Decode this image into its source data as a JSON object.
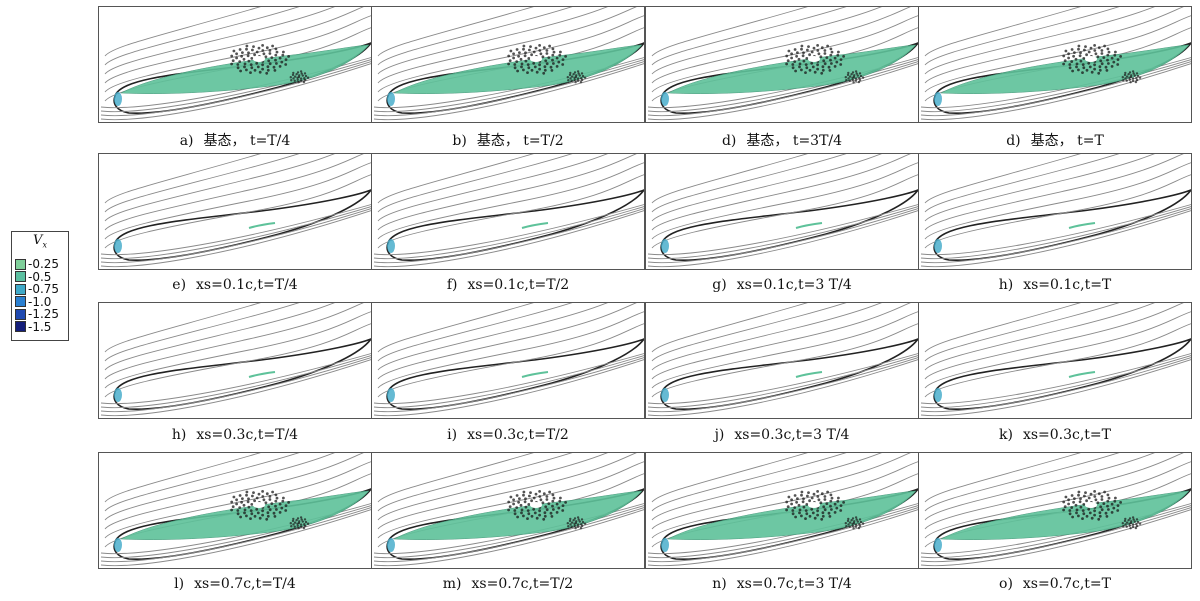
{
  "legend": {
    "title": "V",
    "title_sub": "x",
    "entries": [
      {
        "label": "-0.25",
        "color": "#7fcf9a"
      },
      {
        "label": "-0.5",
        "color": "#5bbfa0"
      },
      {
        "label": "-0.75",
        "color": "#3fa9c8"
      },
      {
        "label": "-1.0",
        "color": "#2a7fd0"
      },
      {
        "label": "-1.25",
        "color": "#1f49b0"
      },
      {
        "label": "-1.5",
        "color": "#141e7a"
      }
    ]
  },
  "colors": {
    "streamline": "#8a8a8a",
    "separation_green": "#5ec29a",
    "vortex_core": "#1a1a1a",
    "frame": "#555555"
  },
  "panels": [
    {
      "letter": "a)",
      "text": "基态， t=T/4",
      "state": "separated"
    },
    {
      "letter": "b)",
      "text": "基态， t=T/2",
      "state": "separated"
    },
    {
      "letter": "d)",
      "text": "基态， t=3T/4",
      "state": "separated"
    },
    {
      "letter": "d)",
      "text": "基态， t=T",
      "state": "separated"
    },
    {
      "letter": "e)",
      "text": "xs=0.1c,t=T/4",
      "state": "attached"
    },
    {
      "letter": "f)",
      "text": "xs=0.1c,t=T/2",
      "state": "attached"
    },
    {
      "letter": "g)",
      "text": "xs=0.1c,t=3 T/4",
      "state": "attached"
    },
    {
      "letter": "h)",
      "text": "xs=0.1c,t=T",
      "state": "attached"
    },
    {
      "letter": "h)",
      "text": "xs=0.3c,t=T/4",
      "state": "attached"
    },
    {
      "letter": "i)",
      "text": "xs=0.3c,t=T/2",
      "state": "attached"
    },
    {
      "letter": "j)",
      "text": "xs=0.3c,t=3 T/4",
      "state": "attached"
    },
    {
      "letter": "k)",
      "text": "xs=0.3c,t=T",
      "state": "attached"
    },
    {
      "letter": "l)",
      "text": "xs=0.7c,t=T/4",
      "state": "separated"
    },
    {
      "letter": "m)",
      "text": "xs=0.7c,t=T/2",
      "state": "separated"
    },
    {
      "letter": "n)",
      "text": "xs=0.7c,t=3 T/4",
      "state": "separated"
    },
    {
      "letter": "o)",
      "text": "xs=0.7c,t=T",
      "state": "separated"
    }
  ]
}
